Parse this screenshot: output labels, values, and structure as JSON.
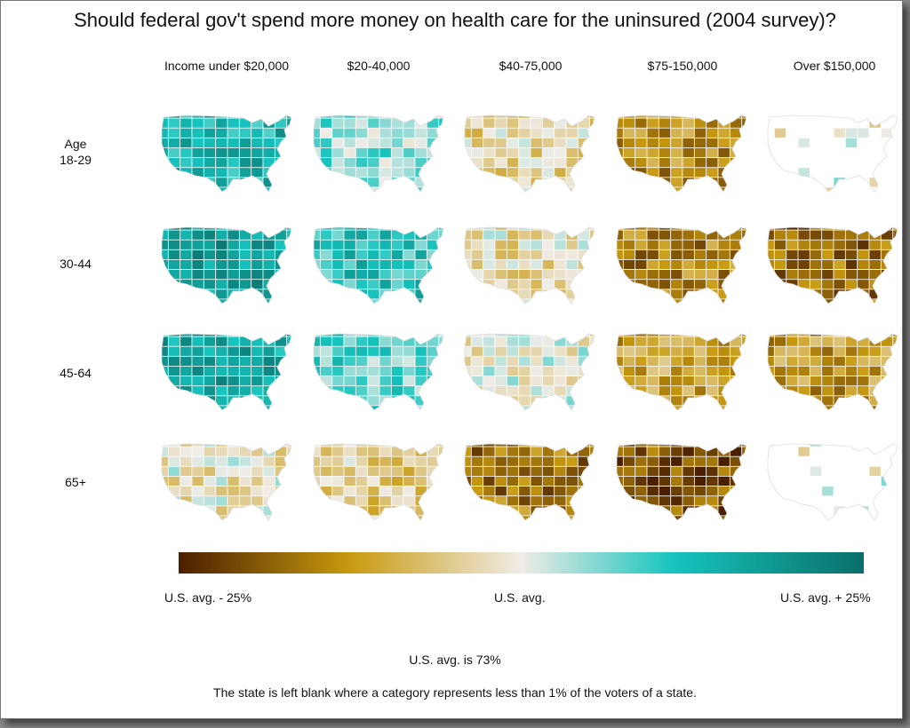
{
  "title": "Should federal gov't spend more money on health care for the uninsured (2004 survey)?",
  "columns": [
    "Income under $20,000",
    "$20-40,000",
    "$40-75,000",
    "$75-150,000",
    "Over $150,000"
  ],
  "rows": [
    {
      "label": "Age\n18-29"
    },
    {
      "label": "30-44"
    },
    {
      "label": "45-64"
    },
    {
      "label": "65+"
    }
  ],
  "maps": [
    [
      {
        "level": 0.55
      },
      {
        "level": 0.2
      },
      {
        "level": -0.15
      },
      {
        "level": -0.55
      },
      {
        "level": 0.0,
        "sparse": true
      }
    ],
    [
      {
        "level": 0.7
      },
      {
        "level": 0.45
      },
      {
        "level": -0.1
      },
      {
        "level": -0.6
      },
      {
        "level": -0.7
      }
    ],
    [
      {
        "level": 0.65
      },
      {
        "level": 0.3
      },
      {
        "level": 0.0
      },
      {
        "level": -0.45
      },
      {
        "level": -0.5
      }
    ],
    [
      {
        "level": -0.05
      },
      {
        "level": -0.2
      },
      {
        "level": -0.65
      },
      {
        "level": -0.8
      },
      {
        "level": 0.0,
        "sparse": true
      }
    ]
  ],
  "colorbar": {
    "left_label": "U.S. avg. - 25%",
    "mid_label": "U.S. avg.",
    "right_label": "U.S. avg. + 25%",
    "stops": [
      "#4a1f00",
      "#c89a10",
      "#f0ece6",
      "#17c4be",
      "#0a6f6a"
    ]
  },
  "notes": {
    "average": "U.S. avg. is 73%",
    "blank": "The state is left blank where a category represents less than 1% of the voters of a state."
  }
}
